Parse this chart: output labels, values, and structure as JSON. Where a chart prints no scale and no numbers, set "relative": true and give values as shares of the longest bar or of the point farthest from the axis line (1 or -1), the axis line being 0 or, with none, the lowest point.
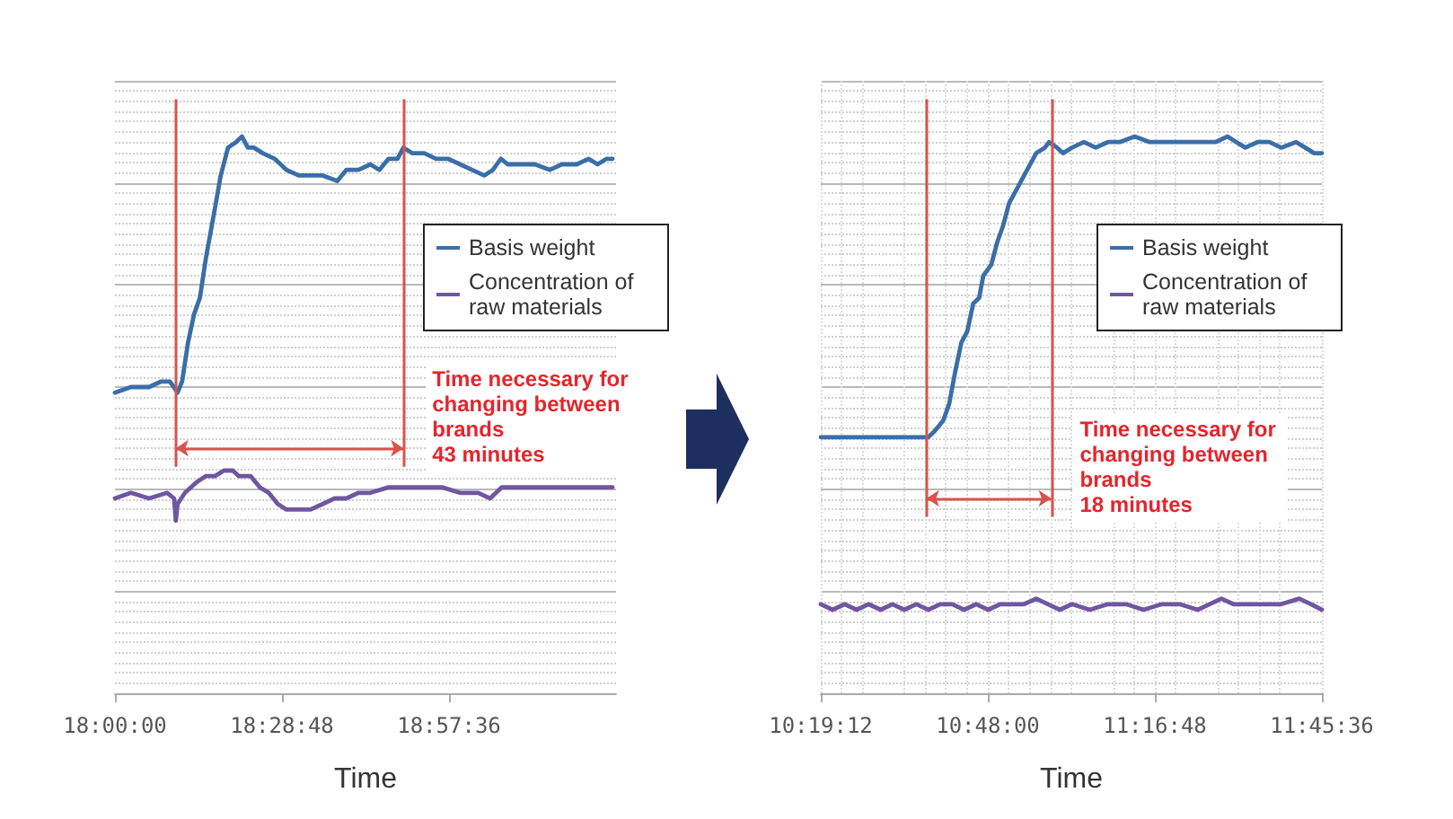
{
  "chart_data": [
    {
      "type": "line",
      "relative": true,
      "xlabel": "Time",
      "xlim": [
        18,
        19.44
      ],
      "xticks": [
        {
          "value": 18,
          "label": "18:00:00"
        },
        {
          "value": 18.48,
          "label": "18:28:48"
        },
        {
          "value": 18.96,
          "label": "18:57:36"
        }
      ],
      "grid": "y",
      "legend": "right",
      "series": [
        {
          "name": "Basis weight",
          "color": "#3a6ea8",
          "x": [
            18.0,
            18.046,
            18.098,
            18.133,
            18.158,
            18.18,
            18.193,
            18.21,
            18.227,
            18.244,
            18.261,
            18.287,
            18.304,
            18.325,
            18.348,
            18.365,
            18.382,
            18.399,
            18.425,
            18.459,
            18.493,
            18.528,
            18.562,
            18.597,
            18.639,
            18.665,
            18.7,
            18.734,
            18.76,
            18.786,
            18.812,
            18.829,
            18.854,
            18.889,
            18.923,
            18.957,
            18.992,
            19.026,
            19.061,
            19.086,
            19.109,
            19.129,
            19.164,
            19.207,
            19.25,
            19.284,
            19.327,
            19.361,
            19.387,
            19.413,
            19.43
          ],
          "values": [
            0.54,
            0.55,
            0.55,
            0.56,
            0.56,
            0.54,
            0.56,
            0.63,
            0.68,
            0.71,
            0.78,
            0.87,
            0.93,
            0.98,
            0.99,
            1,
            0.98,
            0.98,
            0.97,
            0.96,
            0.94,
            0.93,
            0.93,
            0.93,
            0.92,
            0.94,
            0.94,
            0.95,
            0.94,
            0.96,
            0.96,
            0.98,
            0.97,
            0.97,
            0.96,
            0.96,
            0.95,
            0.94,
            0.93,
            0.94,
            0.96,
            0.95,
            0.95,
            0.95,
            0.94,
            0.95,
            0.95,
            0.96,
            0.95,
            0.96,
            0.96
          ]
        },
        {
          "name": "Concentration of raw materials",
          "color": "#6f56a0",
          "x": [
            18.0,
            18.046,
            18.098,
            18.15,
            18.17,
            18.175,
            18.18,
            18.201,
            18.236,
            18.261,
            18.287,
            18.313,
            18.339,
            18.356,
            18.39,
            18.416,
            18.442,
            18.468,
            18.493,
            18.528,
            18.562,
            18.597,
            18.631,
            18.665,
            18.7,
            18.734,
            18.786,
            18.837,
            18.889,
            18.94,
            18.992,
            19.044,
            19.078,
            19.112,
            19.164,
            19.215,
            19.267,
            19.318,
            19.37,
            19.43
          ],
          "values": [
            0.35,
            0.36,
            0.35,
            0.36,
            0.35,
            0.31,
            0.34,
            0.36,
            0.38,
            0.39,
            0.39,
            0.4,
            0.4,
            0.39,
            0.39,
            0.37,
            0.36,
            0.34,
            0.33,
            0.33,
            0.33,
            0.34,
            0.35,
            0.35,
            0.36,
            0.36,
            0.37,
            0.37,
            0.37,
            0.37,
            0.36,
            0.36,
            0.35,
            0.37,
            0.37,
            0.37,
            0.37,
            0.37,
            0.37,
            0.37
          ]
        }
      ],
      "ref_lines": [
        {
          "axis": "x",
          "value": 18.175,
          "color": "#d9534a"
        },
        {
          "axis": "x",
          "value": 18.829,
          "color": "#d9534a"
        }
      ],
      "annotations": [
        {
          "text": "Time necessary for changing between brands\n43 minutes",
          "x": 18.829,
          "y": 0.44
        }
      ]
    },
    {
      "type": "line",
      "relative": true,
      "xlabel": "Time",
      "xlim": [
        10.32,
        11.76
      ],
      "xticks": [
        {
          "value": 10.32,
          "label": "10:19:12"
        },
        {
          "value": 10.8,
          "label": "10:48:00"
        },
        {
          "value": 11.28,
          "label": "11:16:48"
        },
        {
          "value": 11.76,
          "label": "11:45:36"
        }
      ],
      "grid": true,
      "legend": "right",
      "series": [
        {
          "name": "Basis weight",
          "color": "#3a6ea8",
          "x": [
            10.32,
            10.406,
            10.457,
            10.509,
            10.578,
            10.629,
            10.646,
            10.672,
            10.689,
            10.707,
            10.724,
            10.741,
            10.758,
            10.775,
            10.787,
            10.81,
            10.827,
            10.844,
            10.861,
            10.887,
            10.913,
            10.939,
            10.964,
            10.976,
            10.999,
            11.016,
            11.042,
            11.076,
            11.11,
            11.145,
            11.179,
            11.222,
            11.265,
            11.3,
            11.342,
            11.385,
            11.42,
            11.454,
            11.489,
            11.514,
            11.54,
            11.575,
            11.609,
            11.643,
            11.686,
            11.712,
            11.738,
            11.76
          ],
          "values": [
            0.46,
            0.46,
            0.46,
            0.46,
            0.46,
            0.46,
            0.47,
            0.49,
            0.52,
            0.58,
            0.63,
            0.65,
            0.7,
            0.71,
            0.75,
            0.77,
            0.81,
            0.84,
            0.88,
            0.91,
            0.94,
            0.97,
            0.98,
            0.99,
            0.98,
            0.97,
            0.98,
            0.99,
            0.98,
            0.99,
            0.99,
            1,
            0.99,
            0.99,
            0.99,
            0.99,
            0.99,
            0.99,
            1,
            0.99,
            0.98,
            0.99,
            0.99,
            0.98,
            0.99,
            0.98,
            0.97,
            0.97
          ]
        },
        {
          "name": "Concentration of raw materials",
          "color": "#6f56a0",
          "x": [
            10.32,
            10.354,
            10.389,
            10.423,
            10.457,
            10.492,
            10.526,
            10.56,
            10.595,
            10.629,
            10.663,
            10.698,
            10.732,
            10.767,
            10.801,
            10.836,
            10.87,
            10.904,
            10.939,
            10.973,
            11.007,
            11.042,
            11.093,
            11.145,
            11.197,
            11.248,
            11.3,
            11.351,
            11.403,
            11.437,
            11.471,
            11.506,
            11.54,
            11.591,
            11.643,
            11.695,
            11.729,
            11.76
          ],
          "values": [
            0.16,
            0.15,
            0.16,
            0.15,
            0.16,
            0.15,
            0.16,
            0.15,
            0.16,
            0.15,
            0.16,
            0.16,
            0.15,
            0.16,
            0.15,
            0.16,
            0.16,
            0.16,
            0.17,
            0.16,
            0.15,
            0.16,
            0.15,
            0.16,
            0.16,
            0.15,
            0.16,
            0.16,
            0.15,
            0.16,
            0.17,
            0.16,
            0.16,
            0.16,
            0.16,
            0.17,
            0.16,
            0.15
          ]
        }
      ],
      "ref_lines": [
        {
          "axis": "x",
          "value": 10.624,
          "color": "#d9534a"
        },
        {
          "axis": "x",
          "value": 10.982,
          "color": "#d9534a"
        }
      ],
      "annotations": [
        {
          "text": "Time necessary for changing between brands\n18 minutes",
          "x": 10.982,
          "y": 0.35
        }
      ]
    }
  ]
}
